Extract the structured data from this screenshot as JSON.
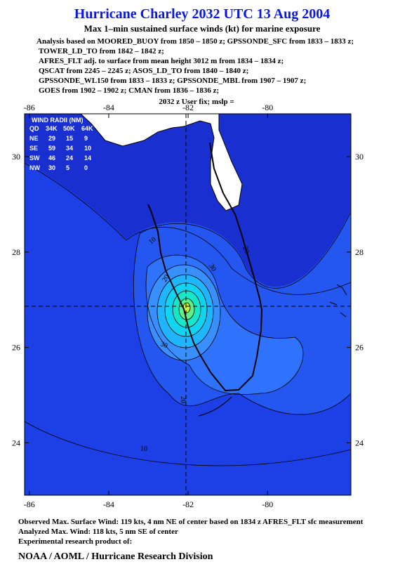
{
  "title": "Hurricane Charley 2032 UTC 13 Aug 2004",
  "subtitle": "Max 1–min sustained surface winds (kt) for marine exposure",
  "analysis_lines": [
    "Analysis based on  MOORED_BUOY from 1850 – 1850 z;  GPSSONDE_SFC from 1833 – 1833 z;",
    "TOWER_LD_TO from 1842 – 1842 z;",
    "AFRES_FLT adj. to surface from mean height 3012 m from 1834 – 1834 z;",
    "QSCAT from 2245 – 2245 z;  ASOS_LD_TO from 1840 – 1840 z;",
    "GPSSONDE_WL150 from 1833 – 1833 z;  GPSSONDE_MBL from 1907 – 1907 z;",
    "GOES from 1902 – 1902 z;  CMAN from 1836 – 1836 z;",
    "2032 z User fix;  mslp ="
  ],
  "map": {
    "xlim": [
      -86.12,
      -77.9
    ],
    "ylim": [
      22.9,
      30.9
    ],
    "xticks": [
      -86,
      -84,
      -82,
      -80
    ],
    "yticks": [
      24,
      26,
      28,
      30
    ]
  },
  "wind_radii": {
    "title": "WIND RADII (NM)",
    "header": [
      "QD",
      "34K",
      "50K",
      "64K"
    ],
    "rows": [
      [
        "NE",
        "29",
        "15",
        "9"
      ],
      [
        "SE",
        "59",
        "34",
        "10"
      ],
      [
        "SW",
        "46",
        "24",
        "14"
      ],
      [
        "NW",
        "30",
        "5",
        "0"
      ]
    ]
  },
  "contour_labels": [
    "10",
    "20",
    "30",
    "20",
    "10",
    "20",
    "30"
  ],
  "footer": {
    "observed": "Observed Max. Surface Wind: 119 kts, 4 nm NE of center based on 1834 z AFRES_FLT sfc measurement",
    "analyzed": "Analyzed Max. Wind: 118 kts, 5 nm SE of center",
    "note": "Experimental research product of:",
    "org": "NOAA / AOML / Hurricane Research Division"
  }
}
